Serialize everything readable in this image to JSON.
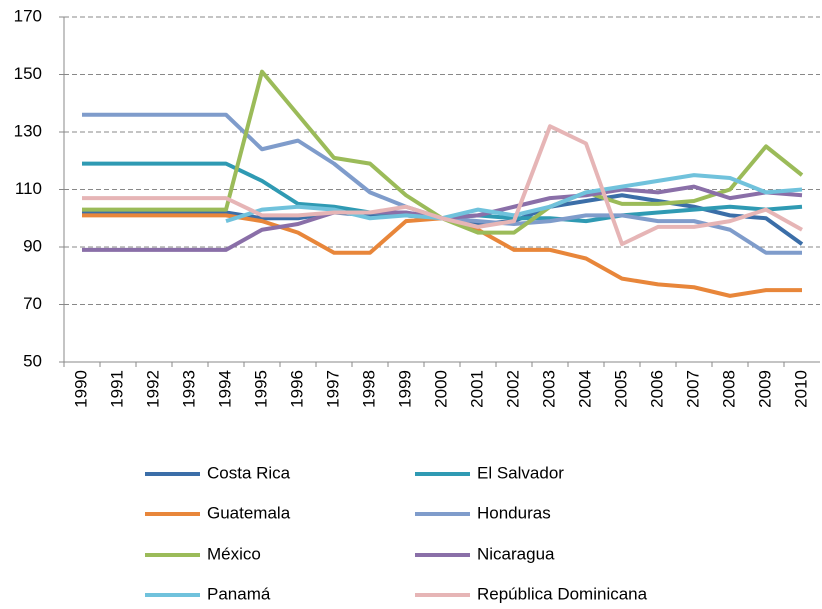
{
  "chart_data": {
    "type": "line",
    "categories": [
      "1990",
      "1991",
      "1992",
      "1993",
      "1994",
      "1995",
      "1996",
      "1997",
      "1998",
      "1999",
      "2000",
      "2001",
      "2002",
      "2003",
      "2004",
      "2005",
      "2006",
      "2007",
      "2008",
      "2009",
      "2010"
    ],
    "ylim": [
      50,
      170
    ],
    "yticks": [
      50,
      70,
      90,
      110,
      130,
      150,
      170
    ],
    "grid": true,
    "legend": "bottom",
    "series": [
      {
        "name": "Costa Rica",
        "color": "#3b6ea8",
        "values": [
          102,
          102,
          102,
          102,
          102,
          100,
          100,
          102,
          101,
          101,
          100,
          98,
          99,
          104,
          106,
          108,
          106,
          104,
          101,
          100,
          91
        ]
      },
      {
        "name": "El Salvador",
        "color": "#2f9ab3",
        "values": [
          119,
          119,
          119,
          119,
          119,
          113,
          105,
          104,
          102,
          101,
          100,
          101,
          100,
          100,
          99,
          101,
          102,
          103,
          104,
          103,
          104
        ]
      },
      {
        "name": "Guatemala",
        "color": "#e8863a",
        "values": [
          101,
          101,
          101,
          101,
          101,
          99,
          95,
          88,
          88,
          99,
          100,
          96,
          89,
          89,
          86,
          79,
          77,
          76,
          73,
          75,
          75
        ]
      },
      {
        "name": "Honduras",
        "color": "#7f9ccb",
        "values": [
          136,
          136,
          136,
          136,
          136,
          124,
          127,
          119,
          109,
          104,
          100,
          99,
          98,
          99,
          101,
          101,
          99,
          99,
          96,
          88,
          88
        ]
      },
      {
        "name": "México",
        "color": "#9bbb59",
        "values": [
          103,
          103,
          103,
          103,
          103,
          151,
          136,
          121,
          119,
          108,
          100,
          95,
          95,
          104,
          109,
          105,
          105,
          106,
          110,
          125,
          115
        ]
      },
      {
        "name": "Nicaragua",
        "color": "#8a6fa8",
        "values": [
          89,
          89,
          89,
          89,
          89,
          96,
          98,
          102,
          102,
          102,
          100,
          101,
          104,
          107,
          108,
          110,
          109,
          111,
          107,
          109,
          108
        ]
      },
      {
        "name": "Panamá",
        "color": "#70c2dc",
        "values": [
          null,
          null,
          null,
          null,
          99,
          103,
          104,
          103,
          100,
          101,
          100,
          103,
          101,
          104,
          109,
          111,
          113,
          115,
          114,
          109,
          110
        ]
      },
      {
        "name": "República Dominicana",
        "color": "#e6b5b6",
        "values": [
          107,
          107,
          107,
          107,
          107,
          101,
          101,
          102,
          102,
          104,
          100,
          97,
          99,
          132,
          126,
          91,
          97,
          97,
          99,
          103,
          96
        ]
      }
    ]
  }
}
